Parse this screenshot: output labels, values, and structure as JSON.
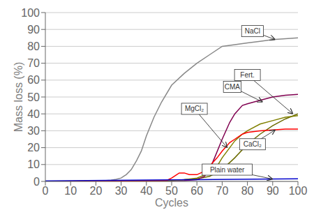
{
  "chart_data": {
    "type": "line",
    "title": "",
    "xlabel": "Cycles",
    "ylabel": "Mass loss (%)",
    "xlim": [
      0,
      100
    ],
    "ylim": [
      0,
      100
    ],
    "xticks": [
      0,
      10,
      20,
      30,
      40,
      50,
      60,
      70,
      80,
      90,
      100
    ],
    "yticks": [
      0,
      10,
      20,
      30,
      40,
      50,
      60,
      70,
      80,
      90,
      100
    ],
    "grid": "y",
    "series": [
      {
        "name": "NaCl",
        "color": "#888888",
        "x": [
          0,
          22,
          26,
          28,
          30,
          31,
          32,
          34,
          36,
          38,
          40,
          43,
          46,
          50,
          55,
          60,
          65,
          70,
          75,
          80,
          85,
          90,
          95,
          100
        ],
        "values": [
          0,
          0.3,
          0.7,
          1.2,
          2,
          3,
          4,
          7,
          12,
          18,
          27,
          38,
          47,
          57,
          64,
          70,
          75,
          80,
          81,
          82,
          83,
          84,
          84.5,
          85
        ]
      },
      {
        "name": "Fert.",
        "color": "#6b6b00",
        "x": [
          0,
          50,
          55,
          60,
          65,
          70,
          75,
          80,
          85,
          90,
          95,
          100
        ],
        "values": [
          0,
          0.5,
          1,
          1.5,
          3,
          7,
          14,
          22,
          28,
          33,
          37,
          40
        ]
      },
      {
        "name": "CMA",
        "color": "#800050",
        "x": [
          0,
          55,
          60,
          63,
          65,
          67,
          70,
          73,
          75,
          78,
          80,
          85,
          90,
          95,
          100
        ],
        "values": [
          0,
          0.5,
          1,
          3,
          7,
          14,
          25,
          35,
          40,
          45,
          46,
          48,
          50,
          51,
          51.5
        ]
      },
      {
        "name": "MgCl₂",
        "color": "#808000",
        "x": [
          0,
          50,
          55,
          60,
          65,
          68,
          70,
          73,
          75,
          78,
          80,
          85,
          90,
          95,
          100
        ],
        "values": [
          0,
          0.5,
          1,
          2,
          5,
          9,
          14,
          20,
          24,
          28,
          30,
          34,
          36,
          38,
          39
        ]
      },
      {
        "name": "CaCl₂",
        "color": "#ff0000",
        "x": [
          0,
          48,
          50,
          52,
          53,
          55,
          57,
          60,
          63,
          65,
          68,
          70,
          73,
          75,
          78,
          80,
          85,
          90,
          95,
          100
        ],
        "values": [
          0,
          0.5,
          2,
          4,
          5,
          5,
          4,
          4,
          6,
          9,
          14,
          18,
          23,
          25,
          28,
          29,
          30,
          30.5,
          31,
          31
        ]
      },
      {
        "name": "Plain water",
        "color": "#0000cc",
        "x": [
          0,
          100
        ],
        "values": [
          0.3,
          1.5
        ]
      }
    ],
    "annotations": [
      {
        "text": "NaCl",
        "x": 91,
        "y": 84,
        "text_x": 82,
        "text_y": 89
      },
      {
        "text": "Fert.",
        "x": 98,
        "y": 40,
        "text_x": 80,
        "text_y": 63
      },
      {
        "text": "CMA",
        "x": 86,
        "y": 47,
        "text_x": 74,
        "text_y": 56
      },
      {
        "text": "MgCl₂",
        "x": 72,
        "y": 20,
        "text_x": 59,
        "text_y": 43
      },
      {
        "text": "CaCl₂",
        "x": 91,
        "y": 30.5,
        "text_x": 82,
        "text_y": 22
      },
      {
        "text": "Plain water",
        "x": 90,
        "y": 1.4,
        "text_x": 72,
        "text_y": 7
      }
    ]
  }
}
